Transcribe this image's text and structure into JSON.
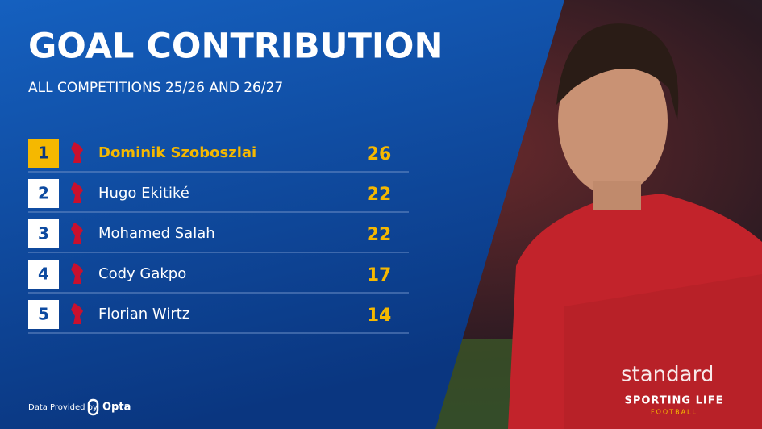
{
  "header": {
    "title": "GOAL CONTRIBUTION",
    "subtitle": "ALL COMPETITIONS 25/26 AND 26/27"
  },
  "table": {
    "rows": [
      [
        "1",
        "Dominik Szoboszlai",
        "26"
      ],
      [
        "2",
        "Hugo Ekitiké",
        "22"
      ],
      [
        "3",
        "Mohamed Salah",
        "22"
      ],
      [
        "4",
        "Cody Gakpo",
        "17"
      ],
      [
        "5",
        "Florian Wirtz",
        "14"
      ]
    ]
  },
  "footer": {
    "provider_label": "Data Provided by",
    "provider": "Opta",
    "brand": "SPORTING LIFE",
    "brand_sub": "FOOTBALL"
  }
}
